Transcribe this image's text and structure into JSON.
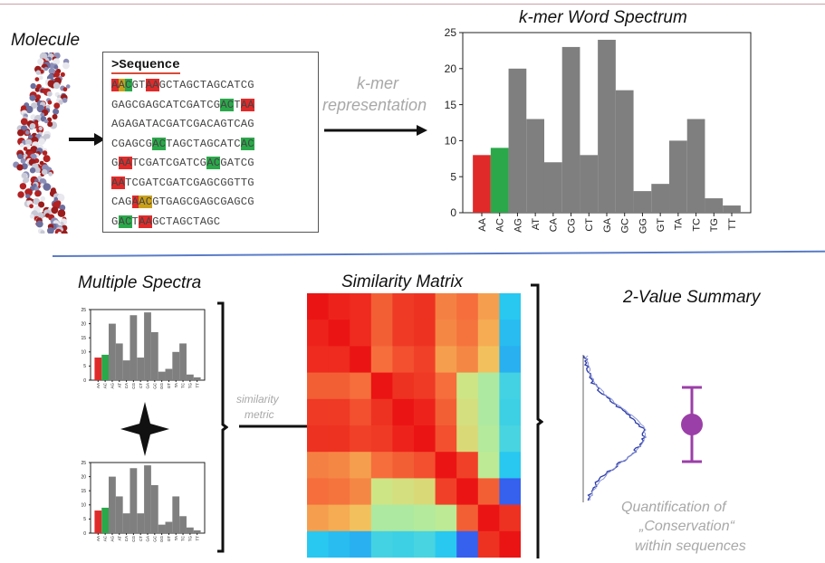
{
  "molecule": {
    "title": "Molecule"
  },
  "sequence": {
    "heading": ">Sequence",
    "lines": [
      [
        {
          "t": "A",
          "c": "r"
        },
        {
          "t": "A",
          "c": "o"
        },
        {
          "t": "C",
          "c": "g"
        },
        {
          "t": "GT"
        },
        {
          "t": "AA",
          "c": "r"
        },
        {
          "t": "GCTAGCTAGCATCG"
        }
      ],
      [
        {
          "t": "GAGCGAGCATCGATCG"
        },
        {
          "t": "AC",
          "c": "g"
        },
        {
          "t": "T"
        },
        {
          "t": "AA",
          "c": "r"
        }
      ],
      [
        {
          "t": "AGAGATACGATCGACAGTCAG"
        }
      ],
      [
        {
          "t": "CGAGCG"
        },
        {
          "t": "AC",
          "c": "g"
        },
        {
          "t": "TAGCTAGCATC"
        },
        {
          "t": "AC",
          "c": "g"
        }
      ],
      [
        {
          "t": "G"
        },
        {
          "t": "AA",
          "c": "r"
        },
        {
          "t": "TCGATCGATCG"
        },
        {
          "t": "AC",
          "c": "g"
        },
        {
          "t": "GATCG"
        }
      ],
      [
        {
          "t": "AA",
          "c": "r"
        },
        {
          "t": "TCGATCGATCGAGCGGTTG"
        }
      ],
      [
        {
          "t": "CAG"
        },
        {
          "t": "A",
          "c": "r"
        },
        {
          "t": "AC",
          "c": "o"
        },
        {
          "t": "GTGAGCGAGCGAGCG"
        }
      ],
      [
        {
          "t": "G"
        },
        {
          "t": "AC",
          "c": "g"
        },
        {
          "t": "T"
        },
        {
          "t": "AA",
          "c": "r"
        },
        {
          "t": "GCTAGCTAGC"
        }
      ]
    ]
  },
  "kmer_label": [
    "k-mer",
    "representation"
  ],
  "spectra": {
    "title": "Multiple Spectra"
  },
  "similarity": {
    "title": "Similarity Matrix",
    "metric_label": [
      "similarity",
      "metric"
    ]
  },
  "summary": {
    "title": "2-Value Summary",
    "caption": [
      "Quantification of",
      "„Conservation“",
      "within sequences"
    ]
  },
  "colors": {
    "red": "#e02a2a",
    "green": "#2aa84a",
    "grey": "#7f7f7f",
    "purple": "#9b3fa8",
    "divider": "#5a7cc8",
    "top_rule": "#c8a0a8"
  },
  "chart_data": [
    {
      "type": "bar",
      "title": "k-mer Word Spectrum",
      "categories": [
        "AA",
        "AC",
        "AG",
        "AT",
        "CA",
        "CG",
        "CT",
        "GA",
        "GC",
        "GG",
        "GT",
        "TA",
        "TC",
        "TG",
        "TT"
      ],
      "values": [
        8,
        9,
        20,
        13,
        7,
        23,
        8,
        24,
        17,
        3,
        4,
        10,
        13,
        2,
        1
      ],
      "bar_colors": [
        "#e02a2a",
        "#2aa84a",
        "#7f7f7f",
        "#7f7f7f",
        "#7f7f7f",
        "#7f7f7f",
        "#7f7f7f",
        "#7f7f7f",
        "#7f7f7f",
        "#7f7f7f",
        "#7f7f7f",
        "#7f7f7f",
        "#7f7f7f",
        "#7f7f7f",
        "#7f7f7f"
      ],
      "yticks": [
        0,
        5,
        10,
        15,
        20,
        25
      ],
      "ylim": [
        0,
        25
      ],
      "xlabel": "",
      "ylabel": ""
    },
    {
      "type": "bar",
      "categories": [
        "AA",
        "AC",
        "AG",
        "AT",
        "CA",
        "CG",
        "CT",
        "GA",
        "GC",
        "GG",
        "GT",
        "TA",
        "TC",
        "TG",
        "TT"
      ],
      "values": [
        8,
        9,
        20,
        13,
        7,
        23,
        8,
        24,
        17,
        3,
        4,
        10,
        13,
        2,
        1
      ],
      "yticks": [
        0,
        5,
        10,
        15,
        20,
        25
      ],
      "ylim": [
        0,
        25
      ]
    },
    {
      "type": "bar",
      "categories": [
        "AA",
        "AC",
        "AG",
        "AT",
        "CA",
        "CG",
        "CT",
        "GA",
        "GC",
        "GG",
        "GT",
        "TA",
        "TC",
        "TG",
        "TT"
      ],
      "values": [
        8,
        9,
        20,
        13,
        7,
        23,
        7,
        24,
        17,
        3,
        4,
        13,
        6,
        2,
        1
      ],
      "yticks": [
        0,
        5,
        10,
        15,
        20,
        25
      ],
      "ylim": [
        0,
        25
      ]
    },
    {
      "type": "heatmap",
      "title": "Similarity Matrix",
      "matrix": [
        [
          1.0,
          0.98,
          0.97,
          0.9,
          0.95,
          0.96,
          0.85,
          0.88,
          0.8,
          0.3
        ],
        [
          0.98,
          1.0,
          0.97,
          0.9,
          0.95,
          0.96,
          0.84,
          0.87,
          0.78,
          0.28
        ],
        [
          0.97,
          0.97,
          1.0,
          0.88,
          0.92,
          0.94,
          0.8,
          0.84,
          0.74,
          0.26
        ],
        [
          0.9,
          0.9,
          0.88,
          1.0,
          0.96,
          0.95,
          0.88,
          0.62,
          0.55,
          0.35
        ],
        [
          0.95,
          0.95,
          0.92,
          0.96,
          1.0,
          0.98,
          0.9,
          0.64,
          0.55,
          0.34
        ],
        [
          0.96,
          0.96,
          0.94,
          0.95,
          0.98,
          1.0,
          0.92,
          0.66,
          0.56,
          0.36
        ],
        [
          0.85,
          0.84,
          0.8,
          0.88,
          0.9,
          0.92,
          1.0,
          0.94,
          0.58,
          0.3
        ],
        [
          0.88,
          0.87,
          0.84,
          0.62,
          0.64,
          0.66,
          0.94,
          1.0,
          0.9,
          0.12
        ],
        [
          0.8,
          0.78,
          0.74,
          0.55,
          0.55,
          0.56,
          0.58,
          0.9,
          1.0,
          0.96
        ],
        [
          0.3,
          0.28,
          0.26,
          0.35,
          0.34,
          0.36,
          0.3,
          0.12,
          0.96,
          1.0
        ]
      ]
    },
    {
      "type": "area",
      "title": "2-Value Summary",
      "description": "distribution of similarity values with mean and spread"
    }
  ]
}
